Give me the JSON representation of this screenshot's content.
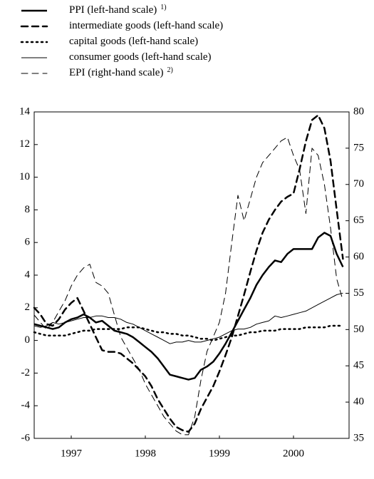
{
  "chart_data": {
    "type": "line",
    "x": [
      1997,
      1997.083,
      1997.167,
      1997.25,
      1997.333,
      1997.417,
      1997.5,
      1997.583,
      1997.667,
      1997.75,
      1997.833,
      1997.917,
      1998,
      1998.083,
      1998.167,
      1998.25,
      1998.333,
      1998.417,
      1998.5,
      1998.583,
      1998.667,
      1998.75,
      1998.833,
      1998.917,
      1999,
      1999.083,
      1999.167,
      1999.25,
      1999.333,
      1999.417,
      1999.5,
      1999.583,
      1999.667,
      1999.75,
      1999.833,
      1999.917,
      2000,
      2000.083,
      2000.167,
      2000.25,
      2000.333,
      2000.417,
      2000.5,
      2000.583,
      2000.667,
      2000.75,
      2000.833,
      2000.917,
      2001,
      2001.083,
      2001.167
    ],
    "xlim": [
      1997,
      2001.25
    ],
    "xticks": [
      {
        "value": 1997.5,
        "label": "1997"
      },
      {
        "value": 1998.5,
        "label": "1998"
      },
      {
        "value": 1999.5,
        "label": "1999"
      },
      {
        "value": 2000.5,
        "label": "2000"
      }
    ],
    "ylim": [
      -6,
      14
    ],
    "yticks": [
      -6,
      -4,
      -2,
      0,
      2,
      4,
      6,
      8,
      10,
      12,
      14
    ],
    "y2lim": [
      35,
      80
    ],
    "y2ticks": [
      35,
      40,
      45,
      50,
      55,
      60,
      65,
      70,
      75,
      80
    ],
    "series": [
      {
        "name": "PPI (left-hand scale)",
        "footnote": "1)",
        "color": "#000000",
        "width": 2.5,
        "dash": "none",
        "values": [
          1.0,
          0.9,
          0.8,
          0.7,
          0.8,
          1.1,
          1.3,
          1.4,
          1.6,
          1.4,
          1.1,
          1.2,
          0.9,
          0.6,
          0.5,
          0.4,
          0.2,
          -0.1,
          -0.4,
          -0.7,
          -1.1,
          -1.6,
          -2.1,
          -2.2,
          -2.3,
          -2.4,
          -2.3,
          -1.8,
          -1.6,
          -1.3,
          -0.8,
          -0.2,
          0.5,
          1.2,
          1.9,
          2.6,
          3.4,
          4.0,
          4.5,
          4.9,
          4.8,
          5.3,
          5.6,
          5.6,
          5.6,
          5.6,
          6.3,
          6.6,
          6.4,
          5.3,
          4.5
        ]
      },
      {
        "name": "intermediate goods (left-hand scale)",
        "color": "#000000",
        "width": 2.5,
        "dash": "9,6",
        "values": [
          2.0,
          1.6,
          1.0,
          0.9,
          1.3,
          1.9,
          2.3,
          2.6,
          1.8,
          1.0,
          0.2,
          -0.6,
          -0.7,
          -0.7,
          -0.8,
          -1.1,
          -1.4,
          -1.8,
          -2.2,
          -2.8,
          -3.6,
          -4.2,
          -4.8,
          -5.3,
          -5.5,
          -5.6,
          -5.1,
          -4.2,
          -3.5,
          -2.8,
          -1.9,
          -0.9,
          0.2,
          1.5,
          2.8,
          4.2,
          5.5,
          6.6,
          7.4,
          8.0,
          8.5,
          8.8,
          9.0,
          10.5,
          12.2,
          13.5,
          13.8,
          13.0,
          11.0,
          8.0,
          5.0
        ]
      },
      {
        "name": "capital goods (left-hand scale)",
        "color": "#000000",
        "width": 2.5,
        "dash": "2,5",
        "values": [
          0.5,
          0.4,
          0.3,
          0.3,
          0.3,
          0.3,
          0.4,
          0.5,
          0.6,
          0.6,
          0.7,
          0.7,
          0.7,
          0.7,
          0.7,
          0.8,
          0.8,
          0.8,
          0.7,
          0.6,
          0.5,
          0.5,
          0.4,
          0.4,
          0.3,
          0.3,
          0.2,
          0.1,
          0.1,
          0.0,
          0.1,
          0.2,
          0.3,
          0.3,
          0.4,
          0.5,
          0.5,
          0.6,
          0.6,
          0.6,
          0.7,
          0.7,
          0.7,
          0.7,
          0.8,
          0.8,
          0.8,
          0.8,
          0.9,
          0.9,
          0.9
        ]
      },
      {
        "name": "consumer goods (left-hand scale)",
        "color": "#000000",
        "width": 1,
        "dash": "none",
        "values": [
          0.9,
          0.8,
          0.9,
          1.1,
          1.0,
          1.1,
          1.2,
          1.3,
          1.4,
          1.4,
          1.5,
          1.5,
          1.4,
          1.4,
          1.3,
          1.1,
          1.0,
          0.8,
          0.6,
          0.4,
          0.2,
          0.0,
          -0.2,
          -0.1,
          -0.1,
          0.0,
          -0.1,
          -0.1,
          0.0,
          0.1,
          0.2,
          0.4,
          0.6,
          0.7,
          0.7,
          0.8,
          1.0,
          1.1,
          1.2,
          1.5,
          1.4,
          1.5,
          1.6,
          1.7,
          1.8,
          2.0,
          2.2,
          2.4,
          2.6,
          2.8,
          2.9
        ]
      },
      {
        "name": "EPI (right-hand scale)",
        "footnote": "2)",
        "color": "#000000",
        "width": 1,
        "dash": "9,6",
        "axis": "y2",
        "values": [
          52,
          51,
          50,
          51,
          52.5,
          54,
          56,
          57.5,
          58.5,
          59,
          56.5,
          56,
          55,
          52,
          49,
          47.5,
          46,
          44.5,
          42.5,
          41,
          39.5,
          38,
          37,
          36,
          35.5,
          35.5,
          38,
          43,
          47,
          49,
          51,
          55,
          62,
          68.5,
          65,
          68,
          71,
          73,
          74,
          75,
          76,
          76.5,
          74,
          72,
          66,
          75,
          74,
          70,
          64,
          57,
          54
        ]
      }
    ]
  }
}
